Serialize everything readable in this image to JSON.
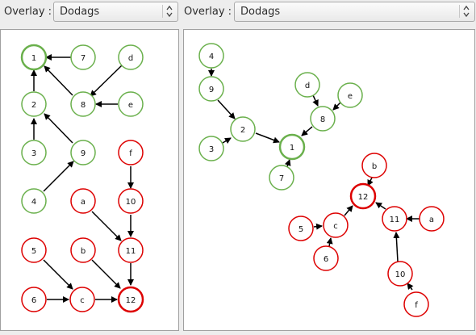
{
  "left": {
    "overlay_label": "Overlay :",
    "overlay_value": "Dodags",
    "nodes": {
      "n1": "1",
      "n7": "7",
      "nd": "d",
      "n2": "2",
      "n8": "8",
      "ne": "e",
      "n3": "3",
      "n9": "9",
      "nf": "f",
      "n4": "4",
      "na": "a",
      "n10": "10",
      "n5": "5",
      "nb": "b",
      "n11": "11",
      "n6": "6",
      "nc": "c",
      "n12": "12"
    }
  },
  "right": {
    "overlay_label": "Overlay :",
    "overlay_value": "Dodags",
    "nodes": {
      "n4": "4",
      "n9": "9",
      "nd": "d",
      "ne": "e",
      "n8": "8",
      "n2": "2",
      "n3": "3",
      "n1": "1",
      "n7": "7",
      "nb": "b",
      "n12": "12",
      "n5": "5",
      "nc": "c",
      "n11": "11",
      "na": "a",
      "n6": "6",
      "n10": "10",
      "nf": "f"
    }
  },
  "colors": {
    "green_node": "#6ab04c",
    "red_node": "#dd0000",
    "edge": "#000000"
  }
}
